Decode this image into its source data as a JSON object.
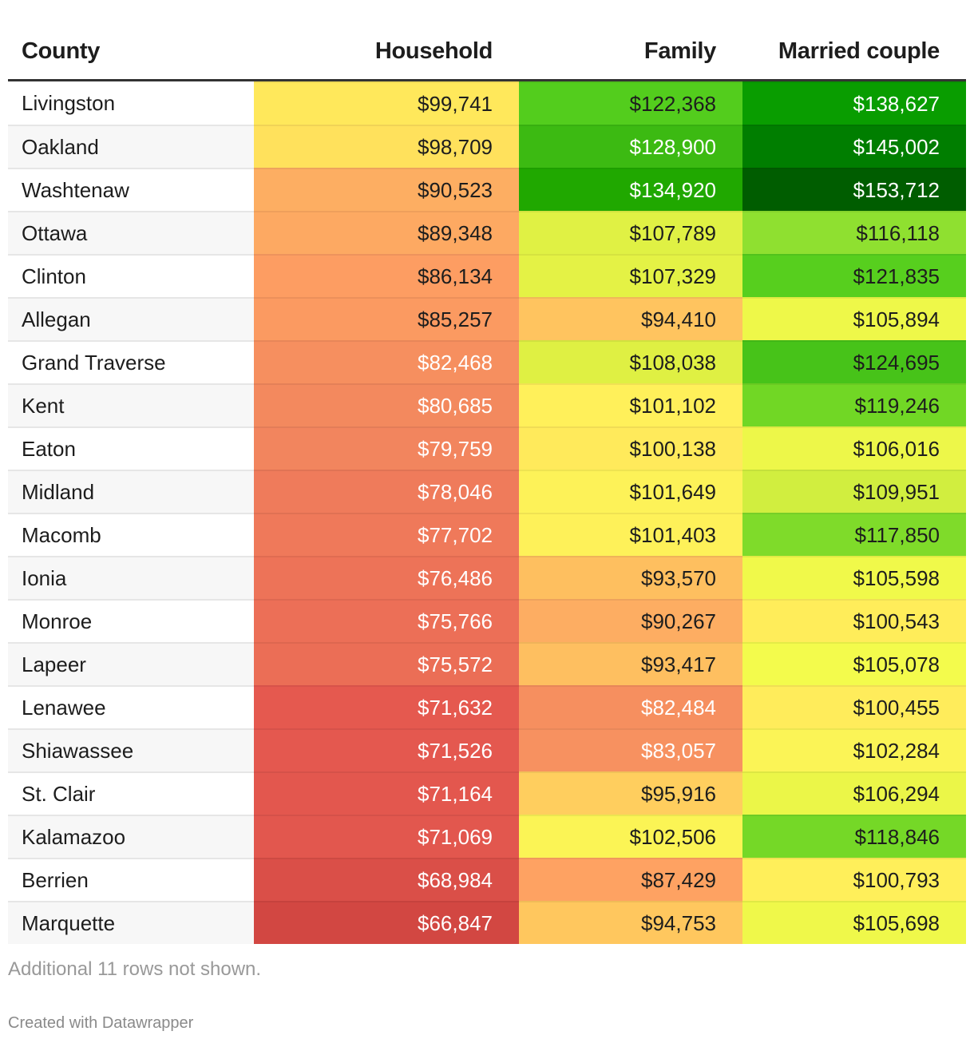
{
  "chart_data": {
    "type": "table",
    "columns": [
      "County",
      "Household",
      "Family",
      "Married couple"
    ],
    "rows": [
      [
        "Livingston",
        "$99,741",
        "$122,368",
        "$138,627"
      ],
      [
        "Oakland",
        "$98,709",
        "$128,900",
        "$145,002"
      ],
      [
        "Washtenaw",
        "$90,523",
        "$134,920",
        "$153,712"
      ],
      [
        "Ottawa",
        "$89,348",
        "$107,789",
        "$116,118"
      ],
      [
        "Clinton",
        "$86,134",
        "$107,329",
        "$121,835"
      ],
      [
        "Allegan",
        "$85,257",
        "$94,410",
        "$105,894"
      ],
      [
        "Grand Traverse",
        "$82,468",
        "$108,038",
        "$124,695"
      ],
      [
        "Kent",
        "$80,685",
        "$101,102",
        "$119,246"
      ],
      [
        "Eaton",
        "$79,759",
        "$100,138",
        "$106,016"
      ],
      [
        "Midland",
        "$78,046",
        "$101,649",
        "$109,951"
      ],
      [
        "Macomb",
        "$77,702",
        "$101,403",
        "$117,850"
      ],
      [
        "Ionia",
        "$76,486",
        "$93,570",
        "$105,598"
      ],
      [
        "Monroe",
        "$75,766",
        "$90,267",
        "$100,543"
      ],
      [
        "Lapeer",
        "$75,572",
        "$93,417",
        "$105,078"
      ],
      [
        "Lenawee",
        "$71,632",
        "$82,484",
        "$100,455"
      ],
      [
        "Shiawassee",
        "$71,526",
        "$83,057",
        "$102,284"
      ],
      [
        "St. Clair",
        "$71,164",
        "$95,916",
        "$106,294"
      ],
      [
        "Kalamazoo",
        "$71,069",
        "$102,506",
        "$118,846"
      ],
      [
        "Berrien",
        "$68,984",
        "$87,429",
        "$100,793"
      ],
      [
        "Marquette",
        "$66,847",
        "$94,753",
        "$105,698"
      ]
    ],
    "color_scale": {
      "low": "#cf4440",
      "mid": "#ffe35c",
      "high": "#005c00"
    }
  },
  "footer": {
    "note": "Additional 11 rows not shown.",
    "credit": "Created with Datawrapper"
  }
}
